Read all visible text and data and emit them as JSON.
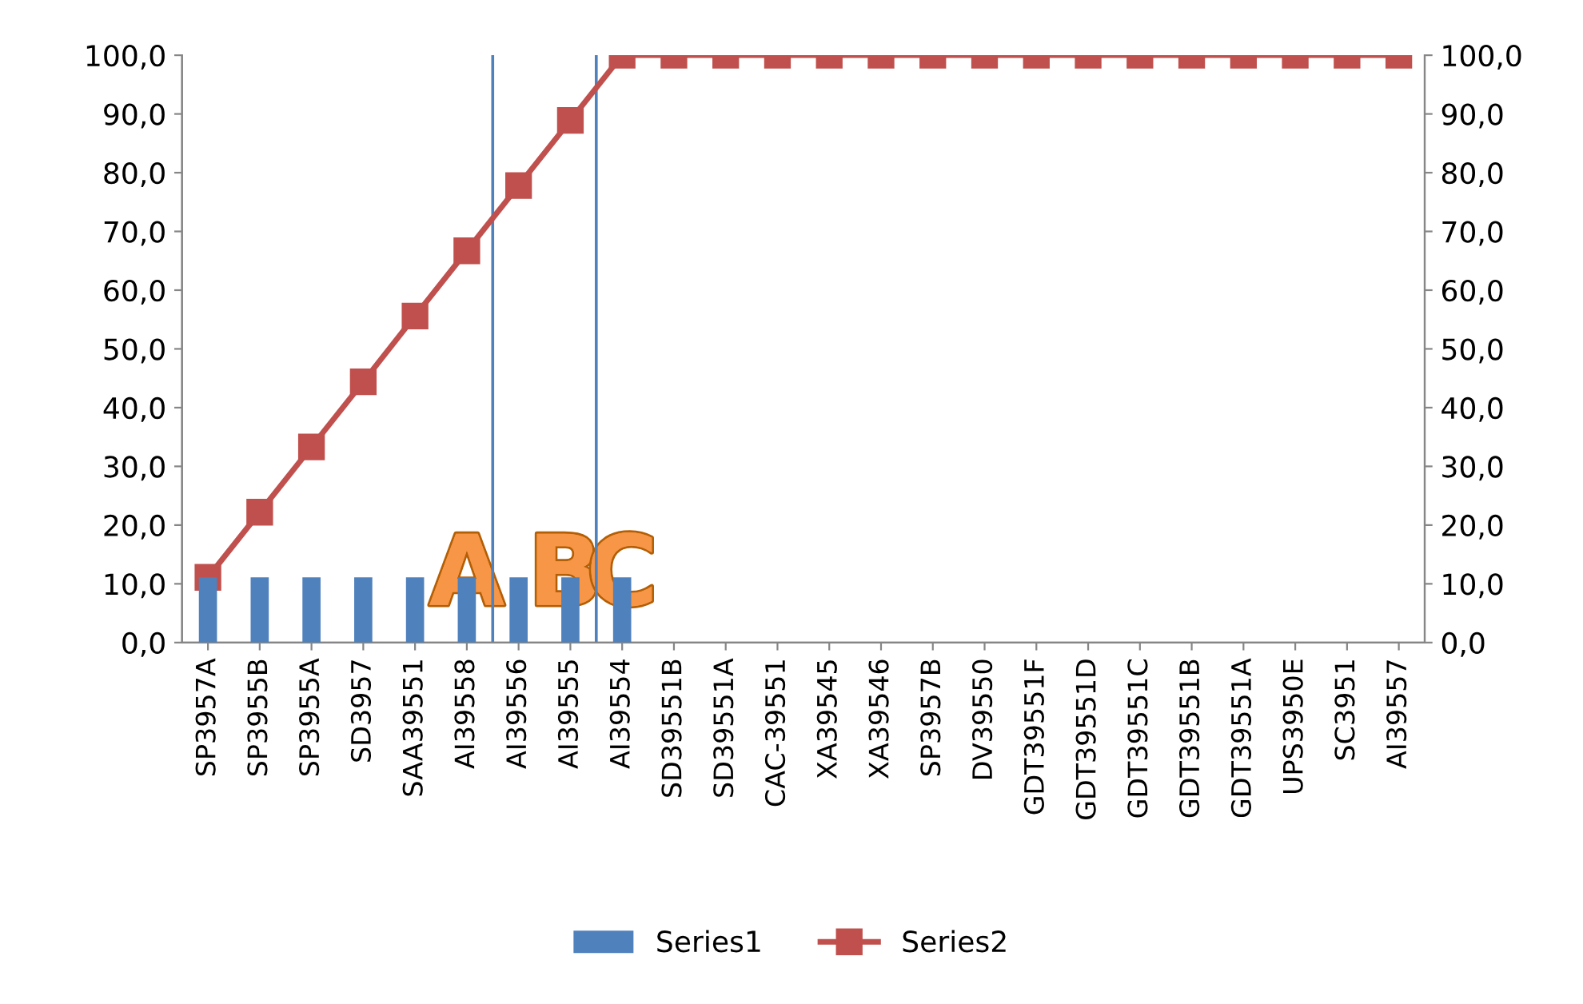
{
  "chart_data": {
    "type": "bar",
    "categories": [
      "SP3957A",
      "SP3955B",
      "SP3955A",
      "SD3957",
      "SAA39551",
      "AI39558",
      "AI39556",
      "AI39555",
      "AI39554",
      "SD39551B",
      "SD39551A",
      "CAC-39551",
      "XA39545",
      "XA39546",
      "SP3957B",
      "DV39550",
      "GDT39551F",
      "GDT39551D",
      "GDT39551C",
      "GDT39551B",
      "GDT39551A",
      "UPS3950E",
      "SC3951",
      "AI39557"
    ],
    "series": [
      {
        "name": "Series1",
        "color": "#4f81bd",
        "values": [
          11.1,
          11.1,
          11.1,
          11.1,
          11.1,
          11.1,
          11.1,
          11.1,
          11.1,
          null,
          null,
          null,
          null,
          null,
          null,
          null,
          null,
          null,
          null,
          null,
          null,
          null,
          null,
          null
        ]
      },
      {
        "name": "Series2",
        "type": "line",
        "color": "#c0504d",
        "marker": "square",
        "values": [
          11.1,
          22.2,
          33.3,
          44.4,
          55.6,
          66.7,
          77.8,
          88.9,
          100,
          100,
          100,
          100,
          100,
          100,
          100,
          100,
          100,
          100,
          100,
          100,
          100,
          100,
          100,
          100
        ]
      }
    ],
    "ylim": [
      0,
      100
    ],
    "yticks": [
      {
        "value": 0,
        "label": "0,0"
      },
      {
        "value": 10,
        "label": "10,0"
      },
      {
        "value": 20,
        "label": "20,0"
      },
      {
        "value": 30,
        "label": "30,0"
      },
      {
        "value": 40,
        "label": "40,0"
      },
      {
        "value": 50,
        "label": "50,0"
      },
      {
        "value": 60,
        "label": "60,0"
      },
      {
        "value": 70,
        "label": "70,0"
      },
      {
        "value": 80,
        "label": "80,0"
      },
      {
        "value": 90,
        "label": "90,0"
      },
      {
        "value": 100,
        "label": "100,0"
      }
    ],
    "y2lim": [
      0,
      100
    ],
    "y2ticks": [
      {
        "value": 0,
        "label": "0,0"
      },
      {
        "value": 10,
        "label": "10,0"
      },
      {
        "value": 20,
        "label": "20,0"
      },
      {
        "value": 30,
        "label": "30,0"
      },
      {
        "value": 40,
        "label": "40,0"
      },
      {
        "value": 50,
        "label": "50,0"
      },
      {
        "value": 60,
        "label": "60,0"
      },
      {
        "value": 70,
        "label": "70,0"
      },
      {
        "value": 80,
        "label": "80,0"
      },
      {
        "value": 90,
        "label": "90,0"
      },
      {
        "value": 100,
        "label": "100,0"
      }
    ],
    "annotations": [
      "A",
      "B",
      "C"
    ],
    "grid": false,
    "legend": "bottom"
  }
}
